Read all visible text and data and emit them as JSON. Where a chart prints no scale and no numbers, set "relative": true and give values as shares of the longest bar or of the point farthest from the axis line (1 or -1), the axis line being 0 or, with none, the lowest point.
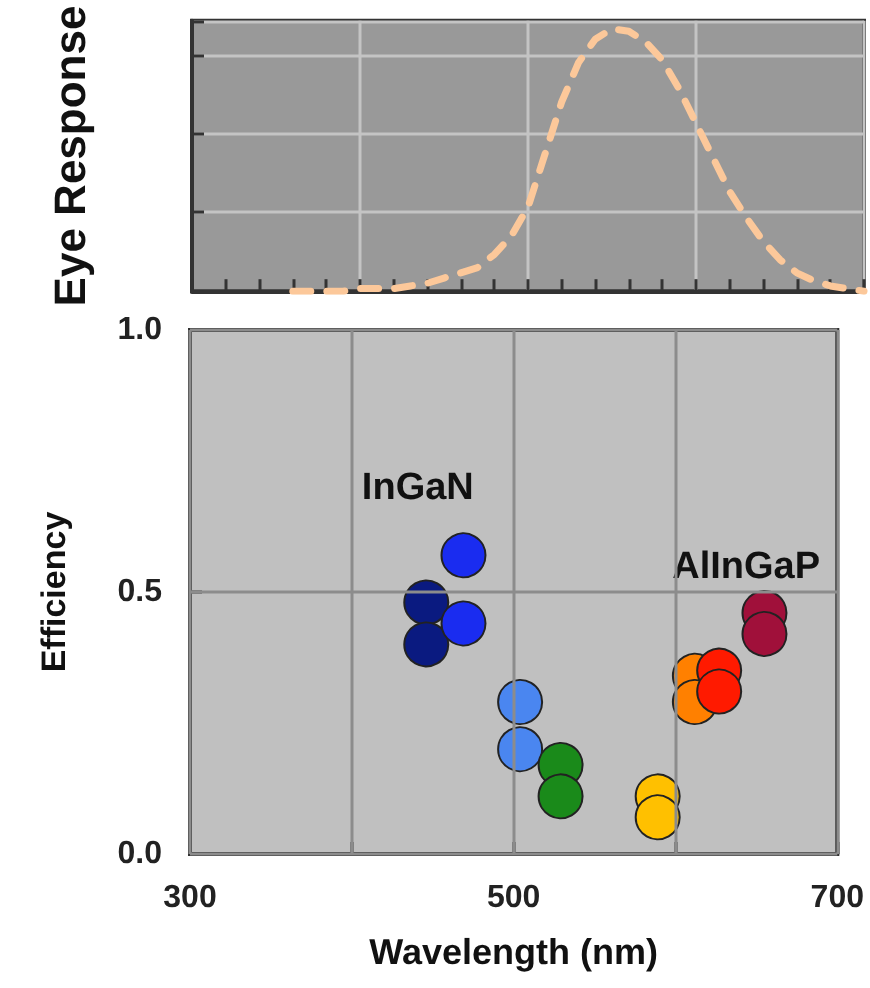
{
  "chart_data": [
    {
      "type": "line",
      "ylabel": "Eye Response",
      "relative": true,
      "grid": true,
      "line_style": "dashed",
      "marker": "none",
      "color": "#fcc89a",
      "categories": [
        null,
        null,
        null,
        null,
        null,
        null,
        null,
        null,
        null,
        null,
        null,
        null,
        null,
        null,
        null,
        null,
        null,
        null,
        null,
        null,
        null,
        null,
        null,
        null,
        null,
        null,
        null,
        null,
        null,
        null,
        null,
        null,
        null,
        null,
        null,
        null,
        null,
        null,
        null,
        null,
        null
      ],
      "values": [
        null,
        null,
        null,
        null,
        null,
        null,
        0,
        0,
        0,
        0,
        0.01,
        0.01,
        0.01,
        0.02,
        0.03,
        0.05,
        0.07,
        0.09,
        0.14,
        0.21,
        0.32,
        0.52,
        0.72,
        0.87,
        0.96,
        1.0,
        0.99,
        0.95,
        0.88,
        0.77,
        0.64,
        0.51,
        0.38,
        0.28,
        0.19,
        0.12,
        0.07,
        0.04,
        0.02,
        0.01,
        0
      ]
    },
    {
      "type": "scatter",
      "xlabel": "Wavelength (nm)",
      "ylabel": "Efficiency",
      "grid": true,
      "marker": "circle",
      "xlim": [
        300,
        700
      ],
      "xticks": [
        300,
        {
          "value": 400,
          "label": null
        },
        500,
        {
          "value": 600,
          "label": null
        },
        700
      ],
      "ylim": [
        0,
        1
      ],
      "yticks": [
        {
          "value": 0,
          "label": "0.0"
        },
        {
          "value": 0.5,
          "label": "0.5"
        },
        {
          "value": 1,
          "label": "1.0"
        }
      ],
      "annotations": [
        "InGaN",
        "AlInGaP"
      ],
      "series": [
        {
          "color": "#0a1a80",
          "x": [
            446,
            446
          ],
          "values": [
            0.48,
            0.4
          ]
        },
        {
          "color": "#1a2cf0",
          "x": [
            469,
            469
          ],
          "values": [
            0.57,
            0.44
          ]
        },
        {
          "color": "#4a86f0",
          "x": [
            504,
            504
          ],
          "values": [
            0.29,
            0.2
          ]
        },
        {
          "color": "#1a8a1a",
          "x": [
            529,
            529
          ],
          "values": [
            0.17,
            0.11
          ]
        },
        {
          "color": "#ffc000",
          "x": [
            589,
            589
          ],
          "values": [
            0.11,
            0.07
          ]
        },
        {
          "color": "#ff8000",
          "x": [
            612,
            612
          ],
          "values": [
            0.34,
            0.29
          ]
        },
        {
          "color": "#ff1a00",
          "x": [
            627,
            627
          ],
          "values": [
            0.35,
            0.31
          ]
        },
        {
          "color": "#a0103a",
          "x": [
            655,
            655
          ],
          "values": [
            0.46,
            0.42
          ]
        }
      ]
    }
  ]
}
